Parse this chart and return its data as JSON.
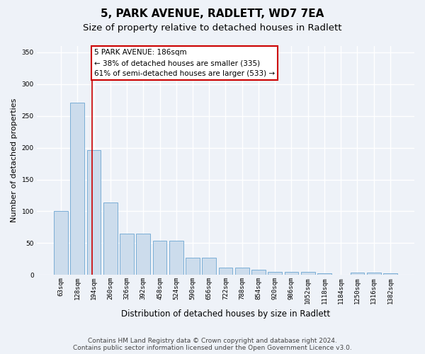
{
  "title": "5, PARK AVENUE, RADLETT, WD7 7EA",
  "subtitle": "Size of property relative to detached houses in Radlett",
  "xlabel": "Distribution of detached houses by size in Radlett",
  "ylabel": "Number of detached properties",
  "categories": [
    "63sqm",
    "128sqm",
    "194sqm",
    "260sqm",
    "326sqm",
    "392sqm",
    "458sqm",
    "524sqm",
    "590sqm",
    "656sqm",
    "722sqm",
    "788sqm",
    "854sqm",
    "920sqm",
    "986sqm",
    "1052sqm",
    "1118sqm",
    "1184sqm",
    "1250sqm",
    "1316sqm",
    "1382sqm"
  ],
  "values": [
    100,
    271,
    196,
    114,
    65,
    65,
    54,
    54,
    27,
    27,
    11,
    11,
    8,
    5,
    5,
    5,
    3,
    0,
    4,
    4,
    2
  ],
  "bar_color": "#ccdcec",
  "bar_edge_color": "#7aaed6",
  "vline_position": 1.87,
  "vline_color": "#cc0000",
  "annotation_line1": "5 PARK AVENUE: 186sqm",
  "annotation_line2": "← 38% of detached houses are smaller (335)",
  "annotation_line3": "61% of semi-detached houses are larger (533) →",
  "annotation_box_facecolor": "#ffffff",
  "annotation_box_edgecolor": "#cc0000",
  "ylim_max": 360,
  "yticks": [
    0,
    50,
    100,
    150,
    200,
    250,
    300,
    350
  ],
  "background_color": "#eef2f8",
  "grid_color": "#ffffff",
  "footer": "Contains HM Land Registry data © Crown copyright and database right 2024.\nContains public sector information licensed under the Open Government Licence v3.0.",
  "title_fontsize": 11,
  "subtitle_fontsize": 9.5,
  "ylabel_fontsize": 8,
  "xlabel_fontsize": 8.5,
  "tick_fontsize": 6.5,
  "footer_fontsize": 6.5,
  "annot_fontsize": 7.5
}
